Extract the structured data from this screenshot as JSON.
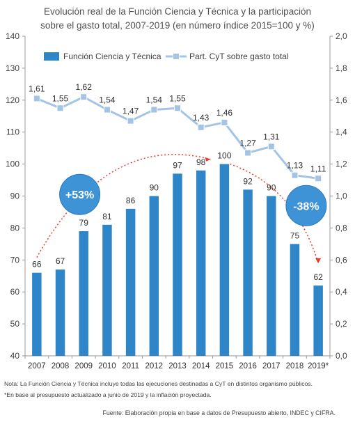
{
  "title_line1": "Evolución real de la Función Ciencia y Técnica y la participación",
  "title_line2": "sobre el gasto total, 2007-2019 (en número índice 2015=100 y %)",
  "note1": "Nota: La Función Ciencia y Técnica incluye todas las ejecuciones destinadas a CyT en distintos organismo públicos.",
  "note2": "*En base al presupuesto actualizado a junio de 2019 y la inflación proyectada.",
  "source": "Fuente: Elaboración propia en base a datos de Presupuesto abierto, INDEC y CIFRA.",
  "colors": {
    "bar": "#2E86C8",
    "line": "#A4C4E6",
    "bubble": "#3D93D6",
    "arrow": "#E8392C"
  },
  "chart_data": {
    "type": "bar",
    "categories": [
      "2007",
      "2008",
      "2009",
      "2010",
      "2011",
      "2012",
      "2013",
      "2014",
      "2015",
      "2016",
      "2017",
      "2018",
      "2019*"
    ],
    "series": [
      {
        "name": "Función Ciencia y Técnica",
        "type": "bar",
        "axis": "left",
        "values": [
          66,
          67,
          79,
          81,
          86,
          90,
          97,
          98,
          100,
          92,
          90,
          75,
          62
        ],
        "labels": [
          "66",
          "67",
          "79",
          "81",
          "86",
          "90",
          "97",
          "98",
          "100",
          "92",
          "90",
          "75",
          "62"
        ]
      },
      {
        "name": "Part. CyT sobre gasto total",
        "type": "line",
        "axis": "right",
        "values": [
          1.61,
          1.55,
          1.62,
          1.54,
          1.47,
          1.54,
          1.55,
          1.43,
          1.46,
          1.27,
          1.31,
          1.13,
          1.11
        ],
        "labels": [
          "1,61",
          "1,55",
          "1,62",
          "1,54",
          "1,47",
          "1,54",
          "1,55",
          "1,43",
          "1,46",
          "1,27",
          "1,31",
          "1,13",
          "1,11"
        ]
      }
    ],
    "left_axis": {
      "range": [
        40,
        140
      ],
      "ticks": [
        "40",
        "50",
        "60",
        "70",
        "80",
        "90",
        "100",
        "110",
        "120",
        "130",
        "140"
      ]
    },
    "right_axis": {
      "range": [
        0,
        2
      ],
      "ticks": [
        "0,0",
        "0,2",
        "0,4",
        "0,6",
        "0,8",
        "1,0",
        "1,2",
        "1,4",
        "1,6",
        "1,8",
        "2,0"
      ]
    },
    "annotations": [
      {
        "text": "+53%",
        "from": "2007",
        "to": "2015"
      },
      {
        "text": "-38%",
        "from": "2015",
        "to": "2019*"
      }
    ],
    "legend": "top-left",
    "grid": false
  }
}
